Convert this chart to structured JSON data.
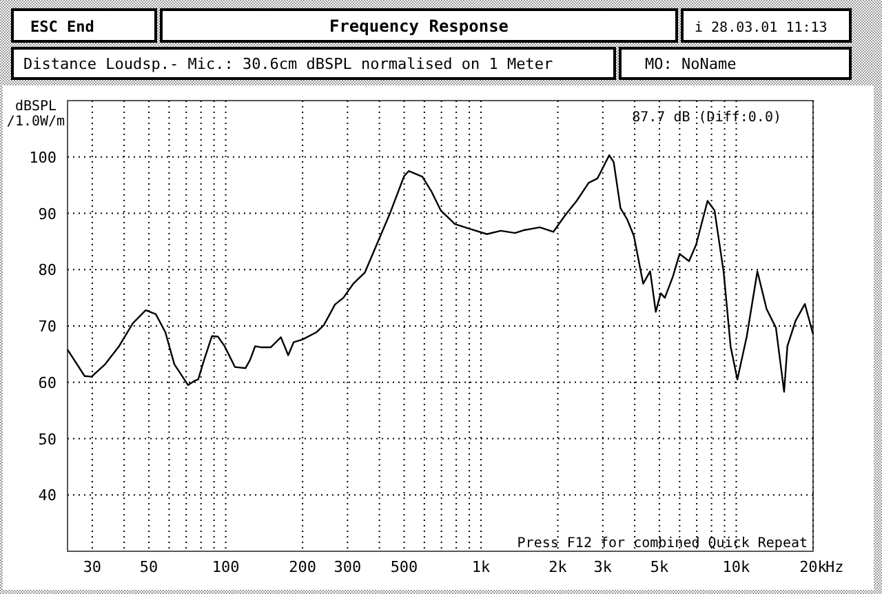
{
  "chart_data": {
    "type": "line",
    "title": "Frequency Response",
    "subtitle": "Distance Loudsp.- Mic.: 30.6cm dBSPL normalised on 1 Meter",
    "ylabel": "dBSPL\n/1.0W/m",
    "annotations": [
      "ESC End",
      "i 28.03.01 11:13",
      "MO: NoName",
      "87.7 dB (Diff:0.0)",
      "Press F12 for combined Quick Repeat"
    ],
    "log": "x",
    "grid": true,
    "marker": "none",
    "line_style": "solid",
    "xlim": [
      24,
      20000
    ],
    "ylim": [
      30,
      110
    ],
    "xticks": [
      30,
      {
        "value": 40,
        "label": null
      },
      50,
      {
        "value": 60,
        "label": null
      },
      {
        "value": 70,
        "label": null
      },
      {
        "value": 80,
        "label": null
      },
      {
        "value": 90,
        "label": null
      },
      100,
      200,
      300,
      {
        "value": 400,
        "label": null
      },
      500,
      {
        "value": 600,
        "label": null
      },
      {
        "value": 700,
        "label": null
      },
      {
        "value": 800,
        "label": null
      },
      {
        "value": 900,
        "label": null
      },
      {
        "value": 1000,
        "label": "1k"
      },
      {
        "value": 2000,
        "label": "2k"
      },
      {
        "value": 3000,
        "label": "3k"
      },
      {
        "value": 4000,
        "label": null
      },
      {
        "value": 5000,
        "label": "5k"
      },
      {
        "value": 6000,
        "label": null
      },
      {
        "value": 7000,
        "label": null
      },
      {
        "value": 8000,
        "label": null
      },
      {
        "value": 9000,
        "label": null
      },
      {
        "value": 10000,
        "label": "10k"
      },
      {
        "value": 20000,
        "label": "20k"
      }
    ],
    "xlabel": "Hz",
    "yticks": [
      40,
      50,
      60,
      70,
      80,
      90,
      100
    ],
    "series": [
      {
        "color": "#000000",
        "x": [
          24,
          28,
          29.8,
          33.7,
          38.2,
          43.3,
          48.6,
          53.2,
          58,
          62.9,
          71.2,
          75.8,
          78,
          82.3,
          88.3,
          93.2,
          99,
          108.7,
          119.5,
          124.6,
          130.4,
          138,
          150,
          164.5,
          175.7,
          184.5,
          200,
          227,
          242,
          268,
          289,
          316,
          351,
          390,
          441,
          500,
          521,
          589,
          641,
          696,
          790,
          895,
          1055,
          1195,
          1360,
          1470,
          1700,
          1920,
          2140,
          2370,
          2640,
          2860,
          3180,
          3310,
          3520,
          3740,
          3970,
          4320,
          4600,
          4840,
          5060,
          5250,
          5640,
          6000,
          6530,
          6960,
          7720,
          8220,
          8930,
          9500,
          10100,
          10990,
          12100,
          13150,
          14300,
          15400,
          15860,
          17070,
          18570,
          20000
        ],
        "values": [
          65.8,
          61.1,
          61,
          63.2,
          66.4,
          70.5,
          72.8,
          72.1,
          68.9,
          63.2,
          59.5,
          60.3,
          60.5,
          64,
          68.2,
          68.1,
          66.4,
          62.7,
          62.5,
          64,
          66.4,
          66.2,
          66.2,
          68,
          64.8,
          67.1,
          67.6,
          68.9,
          70.1,
          73.8,
          75,
          77.5,
          79.5,
          84.4,
          90.1,
          96.6,
          97.5,
          96.5,
          93.8,
          90.5,
          88.1,
          87.3,
          86.3,
          86.9,
          86.5,
          87,
          87.5,
          86.7,
          89.7,
          92.2,
          95.4,
          96.2,
          100.3,
          99.1,
          90.9,
          88.9,
          86,
          77.5,
          79.7,
          72.5,
          75.8,
          75,
          78.7,
          82.8,
          81.5,
          84.4,
          92.2,
          90.5,
          79.5,
          66.4,
          60.5,
          68.1,
          79.7,
          73,
          69.7,
          58.3,
          66.4,
          70.9,
          73.9,
          68.5
        ]
      }
    ]
  }
}
